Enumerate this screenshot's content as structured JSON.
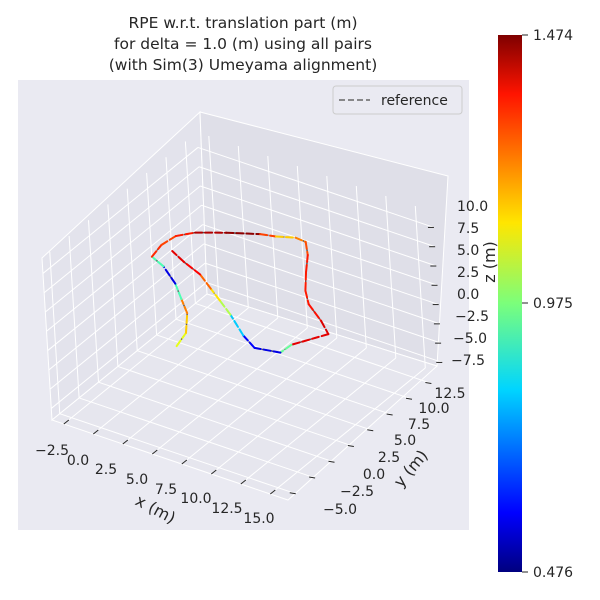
{
  "chart_data": {
    "type": "line",
    "projection": "3d",
    "title_lines": [
      "RPE w.r.t. translation part (m)",
      "for delta = 1.0 (m) using all pairs",
      "(with Sim(3) Umeyama alignment)"
    ],
    "xlabel": "x (m)",
    "ylabel": "y (m)",
    "zlabel": "z (m)",
    "x_ticks": [
      "−2.5",
      "0.0",
      "2.5",
      "5.0",
      "7.5",
      "10.0",
      "12.5",
      "15.0"
    ],
    "y_ticks": [
      "−5.0",
      "−2.5",
      "0.0",
      "2.5",
      "5.0",
      "7.5",
      "10.0",
      "12.5"
    ],
    "z_ticks": [
      "10.0",
      "7.5",
      "5.0",
      "2.5",
      "0.0",
      "−2.5",
      "−5.0",
      "−7.5"
    ],
    "xlim": [
      -3.5,
      16.5
    ],
    "ylim": [
      -6.0,
      14.0
    ],
    "zlim": [
      -9.0,
      12.0
    ],
    "grid": true,
    "legend": {
      "position": "top-right",
      "entries": [
        {
          "label": "reference",
          "style": "dashed",
          "color": "#666666"
        }
      ]
    },
    "colorbar": {
      "colormap": "jet",
      "min_label": "0.476",
      "mid_label": "0.975",
      "max_label": "1.474",
      "min": 0.476,
      "max": 1.474
    },
    "series": [
      {
        "points": [
          [
            1.2,
            3.2,
            -4.5,
            1.05
          ],
          [
            1.8,
            3.6,
            -2.8,
            1.1
          ],
          [
            1.8,
            3.9,
            -0.5,
            1.2
          ],
          [
            1.3,
            4.0,
            1.0,
            1.25
          ],
          [
            1.0,
            3.8,
            3.0,
            0.6
          ],
          [
            0.2,
            3.6,
            5.0,
            0.55
          ],
          [
            -0.6,
            3.4,
            6.0,
            1.3
          ],
          [
            0.0,
            3.8,
            7.5,
            1.32
          ],
          [
            0.8,
            4.5,
            8.5,
            1.25
          ],
          [
            2.0,
            5.2,
            9.0,
            1.4
          ],
          [
            4.0,
            6.2,
            9.2,
            1.45
          ],
          [
            6.0,
            7.5,
            9.0,
            1.47
          ],
          [
            7.0,
            8.0,
            8.8,
            1.1
          ],
          [
            8.2,
            8.7,
            8.7,
            1.2
          ],
          [
            8.7,
            9.2,
            8.0,
            1.25
          ],
          [
            8.6,
            9.5,
            6.0,
            1.3
          ],
          [
            8.0,
            10.0,
            3.0,
            1.35
          ],
          [
            7.5,
            10.5,
            0.0,
            1.3
          ],
          [
            7.5,
            10.8,
            -2.0,
            1.35
          ],
          [
            8.0,
            11.5,
            -4.5,
            1.32
          ],
          [
            8.2,
            12.0,
            -6.5,
            1.45
          ],
          [
            6.0,
            10.5,
            -7.8,
            1.3
          ],
          [
            5.5,
            9.8,
            -8.5,
            0.6
          ],
          [
            4.2,
            8.5,
            -7.5,
            0.55
          ],
          [
            3.5,
            8.2,
            -6.0,
            0.65
          ],
          [
            3.0,
            7.5,
            -3.0,
            0.95
          ],
          [
            2.5,
            7.0,
            -1.0,
            1.1
          ],
          [
            2.0,
            6.7,
            0.5,
            1.15
          ],
          [
            1.5,
            6.2,
            2.5,
            1.35
          ],
          [
            0.8,
            5.3,
            4.5,
            1.35
          ],
          [
            0.2,
            4.8,
            6.0,
            1.4
          ]
        ]
      }
    ]
  }
}
